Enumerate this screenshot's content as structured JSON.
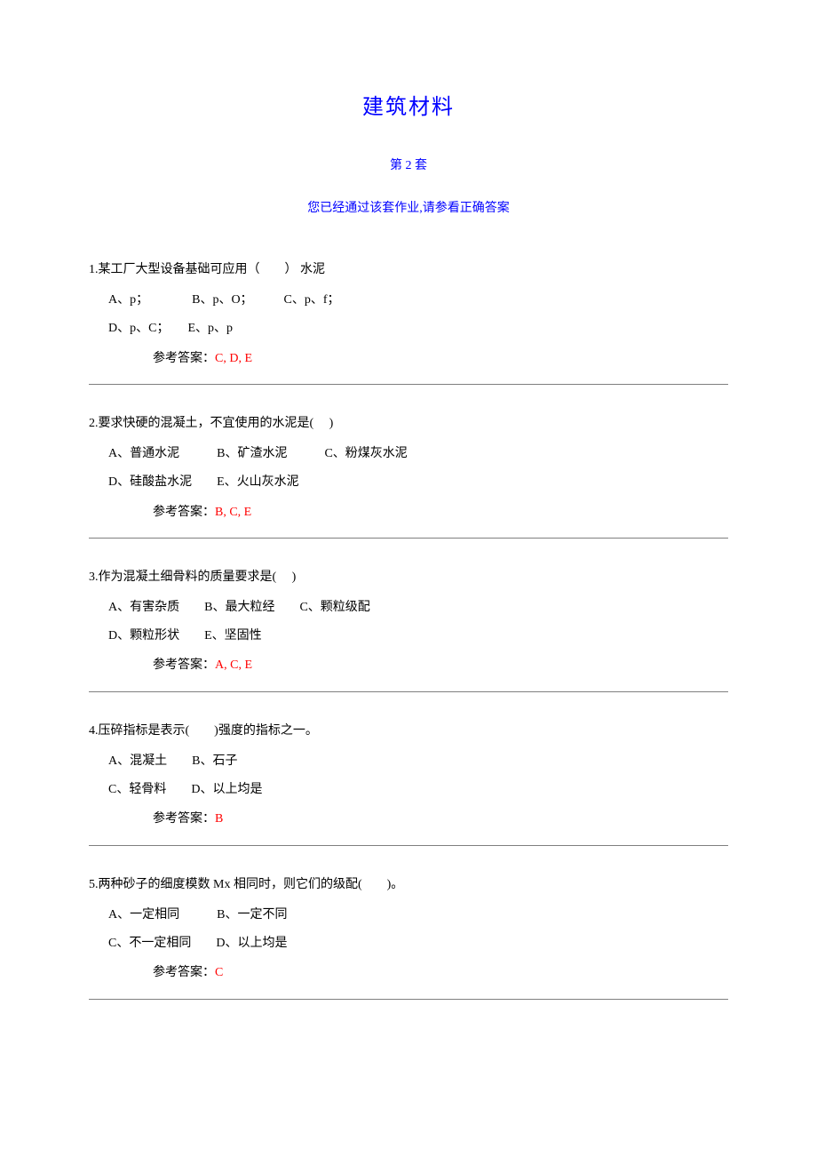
{
  "title": "建筑材料",
  "subtitle": "第 2 套",
  "notice": "您已经通过该套作业,请参看正确答案",
  "answer_label": "参考答案：",
  "colors": {
    "title_color": "#0000ff",
    "text_color": "#000000",
    "answer_color": "#ff0000",
    "hr_color": "#7f7f7f",
    "background": "#ffffff"
  },
  "typography": {
    "title_fontsize": 24,
    "body_fontsize": 14,
    "font_family": "SimSun"
  },
  "questions": [
    {
      "stem": "1.某工厂大型设备基础可应用（　　） 水泥",
      "option_rows": [
        "A、p；　　　　B、p、O；　　　C、p、f；",
        "D、p、C；　　E、p、p"
      ],
      "answer": "C, D, E"
    },
    {
      "stem": "2.要求快硬的混凝土，不宜使用的水泥是(　 )",
      "option_rows": [
        "A、普通水泥　　　B、矿渣水泥　　　C、粉煤灰水泥",
        "D、硅酸盐水泥　　E、火山灰水泥"
      ],
      "answer": "B, C, E"
    },
    {
      "stem": "3.作为混凝土细骨料的质量要求是(　 )",
      "option_rows": [
        "A、有害杂质　　B、最大粒经　　C、颗粒级配",
        "D、颗粒形状　　E、坚固性"
      ],
      "answer": "A, C, E"
    },
    {
      "stem": "4.压碎指标是表示(　　)强度的指标之一。",
      "option_rows": [
        "A、混凝土　　B、石子",
        "C、轻骨料　　D、以上均是"
      ],
      "answer": "B"
    },
    {
      "stem": "5.两种砂子的细度模数 Mx 相同时，则它们的级配(　　)。",
      "option_rows": [
        "A、一定相同　　　B、一定不同",
        "C、不一定相同　　D、以上均是"
      ],
      "answer": "C"
    }
  ]
}
